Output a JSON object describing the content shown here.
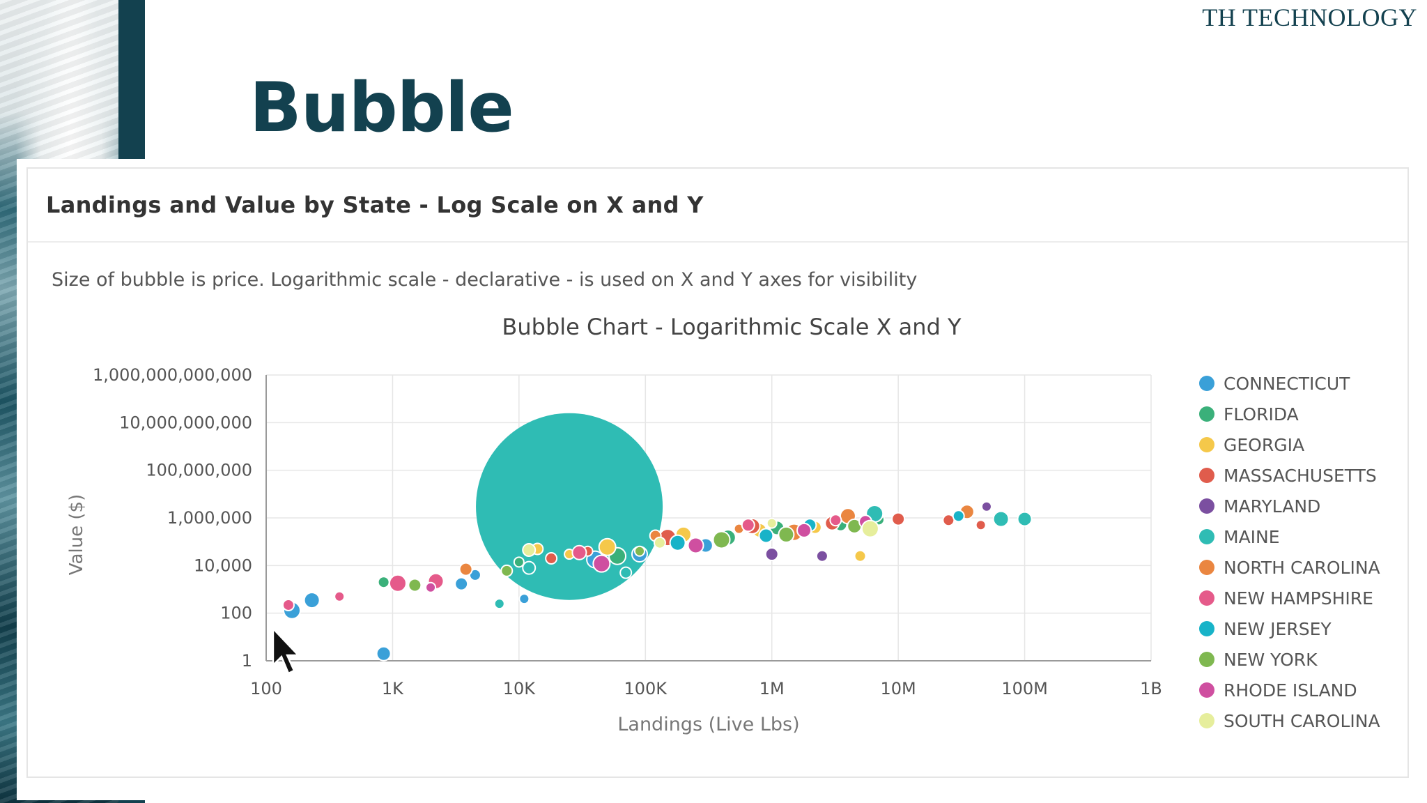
{
  "brand": "TH TECHNOLOGY",
  "slide_title": "Bubble",
  "card": {
    "header": "Landings and Value by State - Log Scale on X and Y",
    "subtitle": "Size of bubble is price. Logarithmic scale - declarative - is used on X and Y axes for visibility"
  },
  "chart_data": {
    "type": "scatter",
    "title": "Bubble Chart - Logarithmic Scale X and Y",
    "xlabel": "Landings (Live Lbs)",
    "ylabel": "Value ($)",
    "x_scale": "log",
    "y_scale": "log",
    "xlim": [
      100,
      1000000000
    ],
    "ylim": [
      1,
      1000000000000
    ],
    "x_ticks": [
      "100",
      "1K",
      "10K",
      "100K",
      "1M",
      "10M",
      "100M",
      "1B"
    ],
    "y_ticks": [
      "1",
      "100",
      "10,000",
      "1,000,000",
      "100,000,000",
      "10,000,000,000",
      "1,000,000,000,000"
    ],
    "grid": true,
    "legend_position": "right",
    "series": [
      {
        "name": "CONNECTICUT",
        "color": "#3aa0d8",
        "points": [
          [
            160,
            130
          ],
          [
            230,
            350
          ],
          [
            850,
            2
          ],
          [
            3500,
            1700
          ],
          [
            4500,
            4000
          ],
          [
            11000,
            400
          ],
          [
            40000,
            18000
          ],
          [
            90000,
            30000
          ],
          [
            300000,
            70000
          ]
        ]
      },
      {
        "name": "FLORIDA",
        "color": "#3ab07a",
        "points": [
          [
            850,
            2000
          ],
          [
            10000,
            14000
          ],
          [
            60000,
            25000
          ],
          [
            450000,
            150000
          ],
          [
            1100000,
            380000
          ],
          [
            3500000,
            520000
          ],
          [
            7000000,
            850000
          ]
        ]
      },
      {
        "name": "GEORGIA",
        "color": "#f5c84a",
        "points": [
          [
            14000,
            50000
          ],
          [
            25000,
            30000
          ],
          [
            50000,
            60000
          ],
          [
            200000,
            200000
          ],
          [
            800000,
            300000
          ],
          [
            2200000,
            400000
          ],
          [
            5000000,
            25000
          ]
        ]
      },
      {
        "name": "MASSACHUSETTS",
        "color": "#e05c4c",
        "points": [
          [
            18000,
            20000
          ],
          [
            35000,
            40000
          ],
          [
            150000,
            150000
          ],
          [
            700000,
            450000
          ],
          [
            3000000,
            600000
          ],
          [
            10000000,
            900000
          ],
          [
            25000000,
            800000
          ],
          [
            45000000,
            500000
          ]
        ]
      },
      {
        "name": "MARYLAND",
        "color": "#7b4fa0",
        "points": [
          [
            1000000,
            30000
          ],
          [
            2500000,
            25000
          ],
          [
            50000000,
            3000000
          ]
        ]
      },
      {
        "name": "MAINE",
        "color": "#2fbcb4",
        "points": [
          [
            25000,
            3000000,
            "big"
          ],
          [
            6500000,
            1500000
          ],
          [
            65000000,
            900000
          ],
          [
            100000000,
            900000
          ],
          [
            12000,
            8000
          ],
          [
            70000,
            5000
          ],
          [
            7000,
            250
          ]
        ]
      },
      {
        "name": "NORTH CAROLINA",
        "color": "#ea8640",
        "points": [
          [
            3800,
            7000
          ],
          [
            120000,
            180000
          ],
          [
            550000,
            350000
          ],
          [
            1500000,
            250000
          ],
          [
            4000000,
            1200000
          ],
          [
            35000000,
            1800000
          ]
        ]
      },
      {
        "name": "NEW HAMPSHIRE",
        "color": "#e55a8a",
        "points": [
          [
            150,
            220
          ],
          [
            380,
            500
          ],
          [
            1100,
            1800
          ],
          [
            2200,
            2200
          ],
          [
            30000,
            35000
          ],
          [
            650000,
            500000
          ],
          [
            3200000,
            800000
          ]
        ]
      },
      {
        "name": "NEW JERSEY",
        "color": "#18b3c8",
        "points": [
          [
            180000,
            90000
          ],
          [
            900000,
            180000
          ],
          [
            2000000,
            500000
          ],
          [
            30000000,
            1200000
          ]
        ]
      },
      {
        "name": "NEW YORK",
        "color": "#7fb850",
        "points": [
          [
            1500,
            1500
          ],
          [
            8000,
            6000
          ],
          [
            90000,
            40000
          ],
          [
            400000,
            120000
          ],
          [
            1300000,
            200000
          ],
          [
            4500000,
            450000
          ]
        ]
      },
      {
        "name": "RHODE ISLAND",
        "color": "#cf4fa0",
        "points": [
          [
            2000,
            1200
          ],
          [
            45000,
            12000
          ],
          [
            250000,
            70000
          ],
          [
            1800000,
            300000
          ],
          [
            5500000,
            700000
          ]
        ]
      },
      {
        "name": "SOUTH CAROLINA",
        "color": "#e6ee9c",
        "points": [
          [
            12000,
            45000
          ],
          [
            130000,
            90000
          ],
          [
            1000000,
            600000
          ],
          [
            6000000,
            350000
          ]
        ]
      }
    ]
  }
}
